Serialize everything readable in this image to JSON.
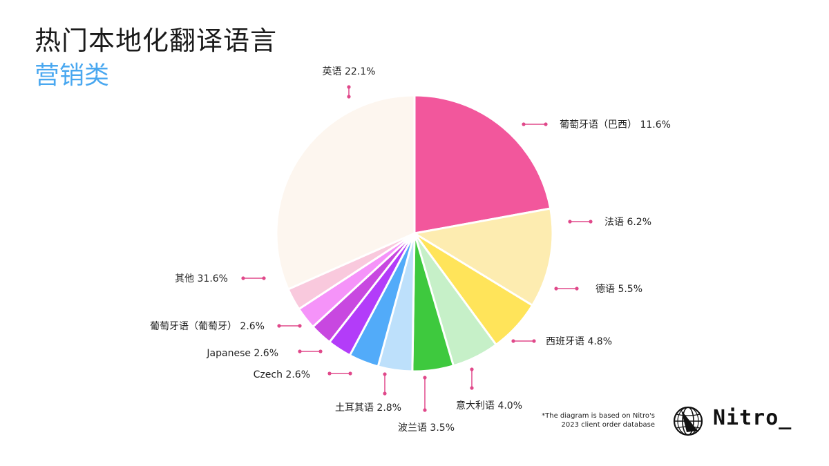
{
  "header": {
    "title": "热门本地化翻译语言",
    "subtitle": "营销类"
  },
  "chart_data": {
    "type": "pie",
    "title": "热门本地化翻译语言",
    "subtitle": "营销类",
    "slices": [
      {
        "label": "英语",
        "value": 22.1,
        "color": "#f2579c"
      },
      {
        "label": "葡萄牙语（巴西）",
        "value": 11.6,
        "color": "#fdecb0"
      },
      {
        "label": "法语",
        "value": 6.2,
        "color": "#ffe45a"
      },
      {
        "label": "德语",
        "value": 5.5,
        "color": "#c6f0c8"
      },
      {
        "label": "西班牙语",
        "value": 4.8,
        "color": "#3ec93e"
      },
      {
        "label": "意大利语",
        "value": 4.0,
        "color": "#bde0fb"
      },
      {
        "label": "波兰语",
        "value": 3.5,
        "color": "#52abf9"
      },
      {
        "label": "土耳其语",
        "value": 2.8,
        "color": "#b33cf9"
      },
      {
        "label": "Czech",
        "value": 2.6,
        "color": "#c848e0"
      },
      {
        "label": "Japanese",
        "value": 2.6,
        "color": "#f593f9"
      },
      {
        "label": "葡萄牙语（葡萄牙）",
        "value": 2.6,
        "color": "#f9c9dd"
      },
      {
        "label": "其他",
        "value": 31.6,
        "color": "#fdf6ef"
      }
    ],
    "slice_labels": [
      "英语 22.1%",
      "葡萄牙语（巴西） 11.6%",
      "法语 6.2%",
      "德语 5.5%",
      "西班牙语 4.8%",
      "意大利语 4.0%",
      "波兰语 3.5%",
      "土耳其语 2.8%",
      "Czech 2.6%",
      "Japanese 2.6%",
      "葡萄牙语（葡萄牙） 2.6%",
      "其他 31.6%"
    ],
    "unit": "%"
  },
  "footnote": {
    "line1": "*The diagram is based on Nitro's",
    "line2": "2023 client order database"
  },
  "brand": {
    "name": "Nitro_",
    "logo_icon": "globe-icon",
    "accent_color": "#e0488a"
  }
}
